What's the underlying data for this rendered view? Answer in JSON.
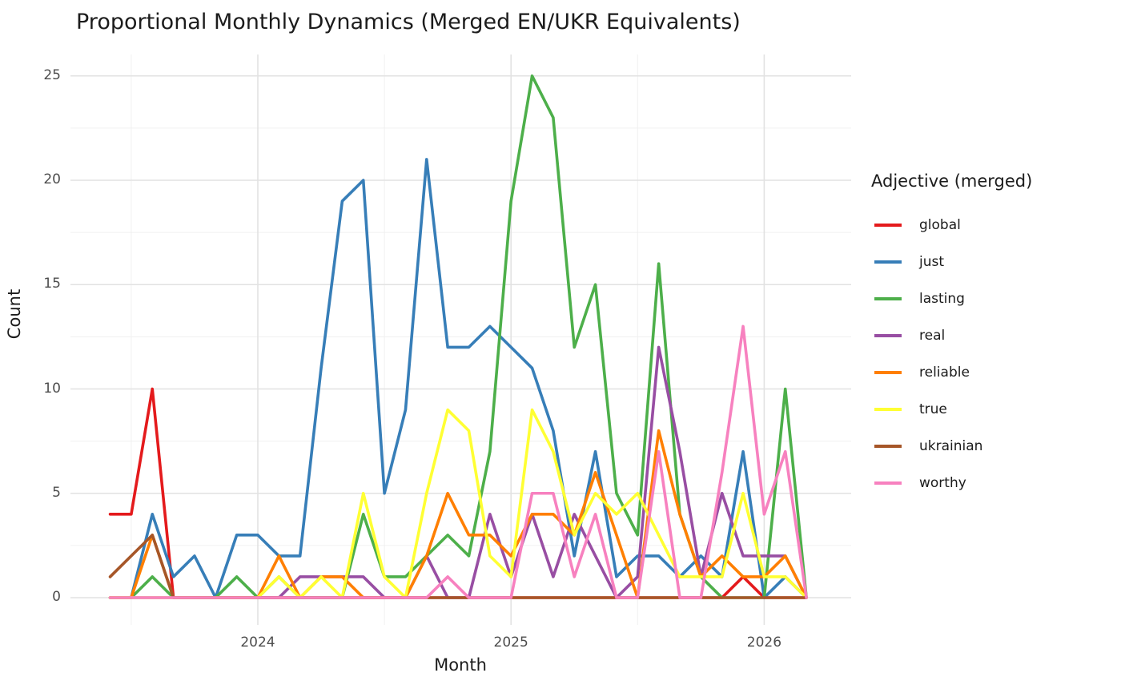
{
  "title": "Proportional Monthly Dynamics (Merged EN/UKR Equivalents)",
  "axes": {
    "x_label": "Month",
    "y_label": "Count",
    "x_tick_labels": [
      "2024",
      "2025",
      "2026"
    ],
    "y_tick_labels": [
      "0",
      "5",
      "10",
      "15",
      "20",
      "25"
    ]
  },
  "legend": {
    "title": "Adjective (merged)",
    "items": [
      "global",
      "just",
      "lasting",
      "real",
      "reliable",
      "true",
      "ukrainian",
      "worthy"
    ]
  },
  "chart_data": {
    "type": "line",
    "title": "Proportional Monthly Dynamics (Merged EN/UKR Equivalents)",
    "xlabel": "Month",
    "ylabel": "Count",
    "ylim": [
      0,
      25
    ],
    "grid": true,
    "legend_position": "right",
    "legend_title": "Adjective (merged)",
    "x": [
      "2023-06",
      "2023-07",
      "2023-08",
      "2023-09",
      "2023-10",
      "2023-11",
      "2023-12",
      "2024-01",
      "2024-02",
      "2024-03",
      "2024-04",
      "2024-05",
      "2024-06",
      "2024-07",
      "2024-08",
      "2024-09",
      "2024-10",
      "2024-11",
      "2024-12",
      "2025-01",
      "2025-02",
      "2025-03",
      "2025-04",
      "2025-05",
      "2025-06",
      "2025-07",
      "2025-08",
      "2025-09",
      "2025-10",
      "2025-11",
      "2025-12",
      "2026-01",
      "2026-02",
      "2026-03"
    ],
    "year_tick_positions": [
      "2024-01",
      "2025-01",
      "2026-01"
    ],
    "series": [
      {
        "name": "global",
        "color": "#e41a1c",
        "values": [
          4,
          4,
          10,
          0,
          0,
          0,
          0,
          0,
          0,
          0,
          0,
          0,
          0,
          0,
          0,
          0,
          0,
          0,
          0,
          0,
          0,
          0,
          0,
          0,
          0,
          0,
          0,
          0,
          0,
          0,
          1,
          0,
          0,
          0
        ]
      },
      {
        "name": "just",
        "color": "#377eb8",
        "values": [
          0,
          0,
          4,
          1,
          2,
          0,
          3,
          3,
          2,
          2,
          11,
          19,
          20,
          5,
          9,
          21,
          12,
          12,
          13,
          12,
          11,
          8,
          2,
          7,
          1,
          2,
          2,
          1,
          2,
          1,
          7,
          0,
          1,
          0
        ]
      },
      {
        "name": "lasting",
        "color": "#4daf4a",
        "values": [
          0,
          0,
          1,
          0,
          0,
          0,
          1,
          0,
          1,
          0,
          0,
          0,
          4,
          1,
          1,
          2,
          3,
          2,
          7,
          19,
          25,
          23,
          12,
          15,
          5,
          3,
          16,
          4,
          1,
          0,
          0,
          0,
          10,
          0
        ]
      },
      {
        "name": "real",
        "color": "#984ea3",
        "values": [
          0,
          0,
          0,
          0,
          0,
          0,
          0,
          0,
          0,
          1,
          1,
          1,
          1,
          0,
          0,
          2,
          0,
          0,
          4,
          1,
          4,
          1,
          4,
          2,
          0,
          1,
          12,
          7,
          1,
          5,
          2,
          2,
          2,
          0
        ]
      },
      {
        "name": "reliable",
        "color": "#ff7f00",
        "values": [
          0,
          0,
          3,
          0,
          0,
          0,
          0,
          0,
          2,
          0,
          1,
          1,
          0,
          0,
          0,
          2,
          5,
          3,
          3,
          2,
          4,
          4,
          3,
          6,
          3,
          0,
          8,
          4,
          1,
          2,
          1,
          1,
          2,
          0
        ]
      },
      {
        "name": "true",
        "color": "#ffff33",
        "values": [
          0,
          0,
          0,
          0,
          0,
          0,
          0,
          0,
          1,
          0,
          1,
          0,
          5,
          1,
          0,
          5,
          9,
          8,
          2,
          1,
          9,
          7,
          3,
          5,
          4,
          5,
          3,
          1,
          1,
          1,
          5,
          1,
          1,
          0
        ]
      },
      {
        "name": "ukrainian",
        "color": "#a65628",
        "values": [
          1,
          2,
          3,
          0,
          0,
          0,
          0,
          0,
          0,
          0,
          0,
          0,
          0,
          0,
          0,
          0,
          0,
          0,
          0,
          0,
          0,
          0,
          0,
          0,
          0,
          0,
          0,
          0,
          0,
          0,
          0,
          0,
          0,
          0
        ]
      },
      {
        "name": "worthy",
        "color": "#f781bf",
        "values": [
          0,
          0,
          0,
          0,
          0,
          0,
          0,
          0,
          0,
          0,
          0,
          0,
          0,
          0,
          0,
          0,
          1,
          0,
          0,
          0,
          5,
          5,
          1,
          4,
          0,
          0,
          7,
          0,
          0,
          6,
          13,
          4,
          7,
          0
        ]
      }
    ]
  }
}
